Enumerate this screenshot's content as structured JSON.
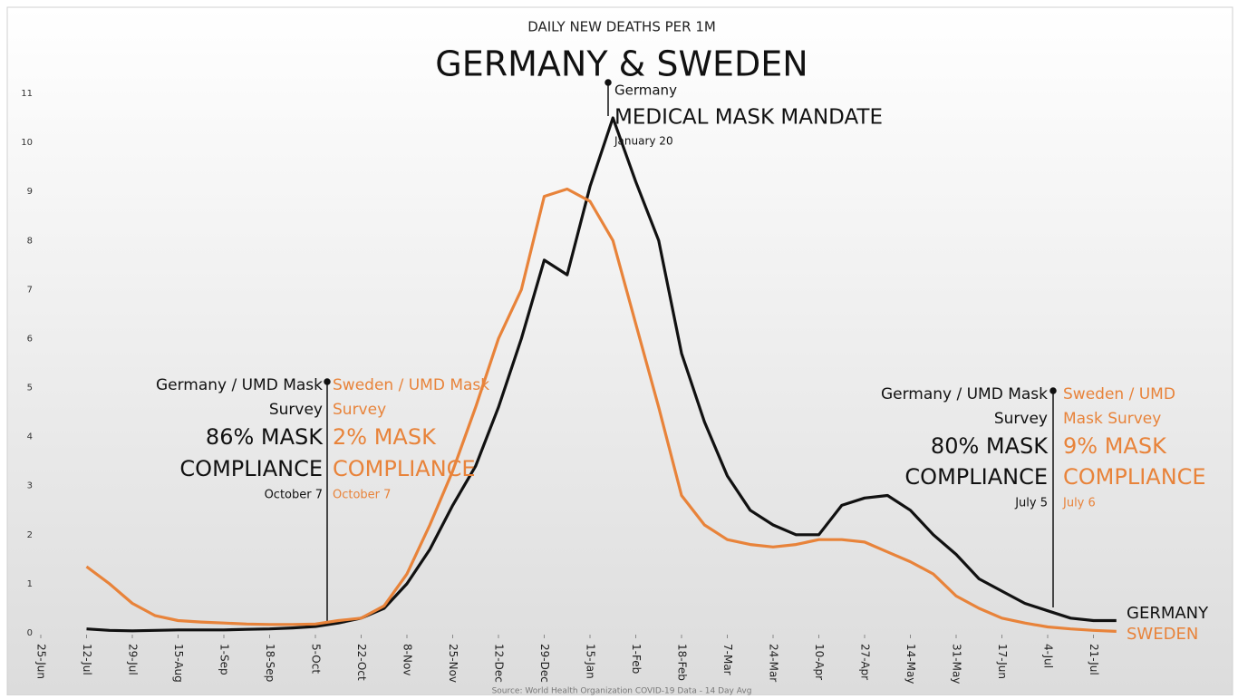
{
  "chart_data": {
    "type": "line",
    "subtitle": "DAILY NEW DEATHS PER 1M",
    "title": "GERMANY & SWEDEN",
    "source": "Source: World Health Organization COVID-19 Data - 14 Day Avg",
    "categories": [
      "25-Jun",
      null,
      "12-Jul",
      null,
      "29-Jul",
      null,
      "15-Aug",
      null,
      "1-Sep",
      null,
      "18-Sep",
      null,
      "5-Oct",
      null,
      "22-Oct",
      null,
      "8-Nov",
      null,
      "25-Nov",
      null,
      "12-Dec",
      null,
      "29-Dec",
      null,
      "15-Jan",
      null,
      "1-Feb",
      null,
      "18-Feb",
      null,
      "7-Mar",
      null,
      "24-Mar",
      null,
      "10-Apr",
      null,
      "27-Apr",
      null,
      "14-May",
      null,
      "31-May",
      null,
      "17-Jun",
      null,
      "4-Jul",
      null,
      "21-Jul",
      null
    ],
    "series": [
      {
        "name": "GERMANY",
        "color": "#111111",
        "values": [
          null,
          null,
          0.08,
          0.05,
          0.04,
          0.05,
          0.06,
          0.06,
          0.06,
          0.07,
          0.08,
          0.1,
          0.13,
          0.2,
          0.3,
          0.5,
          1.0,
          1.7,
          2.6,
          3.4,
          4.6,
          6.0,
          7.6,
          7.3,
          9.1,
          10.5,
          9.2,
          8.0,
          5.7,
          4.3,
          3.2,
          2.5,
          2.2,
          2.0,
          2.0,
          2.6,
          2.75,
          2.8,
          2.5,
          2.0,
          1.6,
          1.1,
          0.85,
          0.6,
          0.45,
          0.3,
          0.25,
          0.25
        ]
      },
      {
        "name": "SWEDEN",
        "color": "#e8833a",
        "values": [
          null,
          null,
          1.35,
          1.0,
          0.6,
          0.35,
          0.25,
          0.22,
          0.2,
          0.18,
          0.17,
          0.17,
          0.18,
          0.25,
          0.3,
          0.55,
          1.2,
          2.2,
          3.3,
          4.6,
          6.0,
          7.0,
          8.9,
          9.05,
          8.8,
          8.0,
          6.3,
          4.6,
          2.8,
          2.2,
          1.9,
          1.8,
          1.75,
          1.8,
          1.9,
          1.9,
          1.85,
          1.65,
          1.45,
          1.2,
          0.75,
          0.5,
          0.3,
          0.2,
          0.12,
          0.08,
          0.05,
          0.03
        ]
      }
    ],
    "ylim": [
      0,
      11
    ],
    "yticks": [
      0,
      1,
      2,
      3,
      4,
      5,
      6,
      7,
      8,
      9,
      10,
      11
    ],
    "grid": false,
    "annotations": [
      {
        "color": "#111111",
        "lines": [
          "Germany / UMD Mask",
          "Survey",
          "86% MASK",
          "COMPLIANCE",
          "October 7"
        ]
      },
      {
        "color": "#e8833a",
        "lines": [
          "Sweden / UMD Mask",
          "Survey",
          "2% MASK",
          "COMPLIANCE",
          "October 7"
        ]
      },
      {
        "color": "#111111",
        "lines": [
          "Germany / UMD Mask",
          "Survey",
          "80% MASK",
          "COMPLIANCE",
          "July 5"
        ]
      },
      {
        "color": "#e8833a",
        "lines": [
          "Sweden / UMD",
          "Mask Survey",
          "9% MASK",
          "COMPLIANCE",
          "July 6"
        ]
      },
      {
        "color": "#111111",
        "lines": [
          "Germany",
          "MEDICAL MASK MANDATE",
          "January 20"
        ]
      }
    ]
  }
}
